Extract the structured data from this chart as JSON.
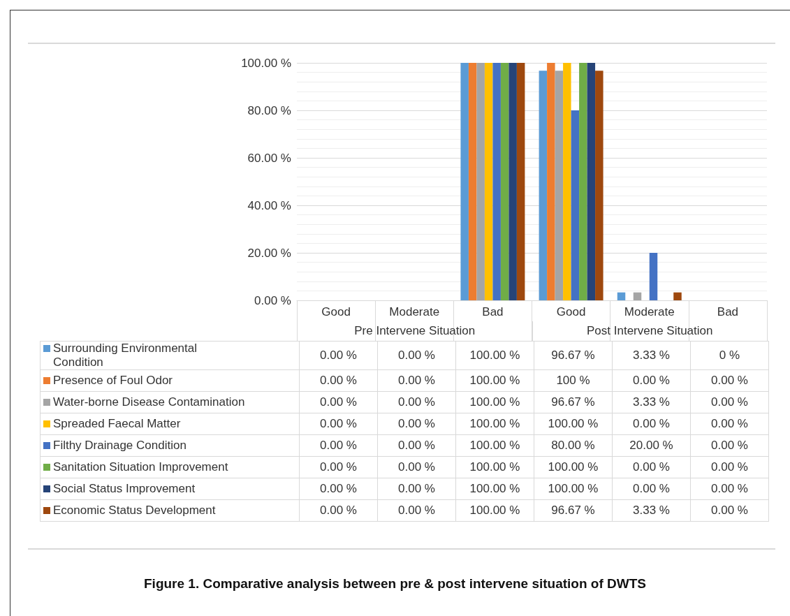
{
  "chart_data": {
    "type": "bar",
    "title": "Figure 1. Comparative analysis between pre & post intervene situation of DWTS",
    "categories": [
      "Good",
      "Moderate",
      "Bad",
      "Good",
      "Moderate",
      "Bad"
    ],
    "annotations": [
      "Pre Intervene Situation",
      "Post Intervene Situation"
    ],
    "ylim": [
      0,
      100
    ],
    "yticks": [
      {
        "value": 0,
        "label": "0.00 %"
      },
      {
        "value": 20,
        "label": "20.00 %"
      },
      {
        "value": 40,
        "label": "40.00 %"
      },
      {
        "value": 60,
        "label": "60.00 %"
      },
      {
        "value": 80,
        "label": "80.00 %"
      },
      {
        "value": 100,
        "label": "100.00 %"
      }
    ],
    "grid": "y",
    "legend": "bottom left",
    "series": [
      {
        "name": "Surrounding Environmental Condition",
        "color": "#5b9bd5",
        "values": [
          0,
          0,
          100,
          96.67,
          3.33,
          0
        ],
        "value_labels": [
          "0.00 %",
          "0.00 %",
          "100.00 %",
          "96.67 %",
          "3.33 %",
          "0 %"
        ]
      },
      {
        "name": "Presence of Foul Odor",
        "color": "#ed7d31",
        "values": [
          0,
          0,
          100,
          100,
          0,
          0
        ],
        "value_labels": [
          "0.00 %",
          "0.00 %",
          "100.00 %",
          "100 %",
          "0.00 %",
          "0.00 %"
        ]
      },
      {
        "name": "Water-borne Disease Contamination",
        "color": "#a5a5a5",
        "values": [
          0,
          0,
          100,
          96.67,
          3.33,
          0
        ],
        "value_labels": [
          "0.00 %",
          "0.00 %",
          "100.00 %",
          "96.67 %",
          "3.33 %",
          "0.00 %"
        ]
      },
      {
        "name": "Spreaded Faecal Matter",
        "color": "#ffc000",
        "values": [
          0,
          0,
          100,
          100,
          0,
          0
        ],
        "value_labels": [
          "0.00 %",
          "0.00 %",
          "100.00 %",
          "100.00 %",
          "0.00 %",
          "0.00 %"
        ]
      },
      {
        "name": "Filthy Drainage Condition",
        "color": "#4472c4",
        "values": [
          0,
          0,
          100,
          80,
          20,
          0
        ],
        "value_labels": [
          "0.00 %",
          "0.00 %",
          "100.00 %",
          "80.00 %",
          "20.00 %",
          "0.00 %"
        ]
      },
      {
        "name": "Sanitation Situation Improvement",
        "color": "#70ad47",
        "values": [
          0,
          0,
          100,
          100,
          0,
          0
        ],
        "value_labels": [
          "0.00 %",
          "0.00 %",
          "100.00 %",
          "100.00 %",
          "0.00 %",
          "0.00 %"
        ]
      },
      {
        "name": "Social Status Improvement",
        "color": "#264478",
        "values": [
          0,
          0,
          100,
          100,
          0,
          0
        ],
        "value_labels": [
          "0.00 %",
          "0.00 %",
          "100.00 %",
          "100.00 %",
          "0.00 %",
          "0.00 %"
        ]
      },
      {
        "name": "Economic Status Development",
        "color": "#9e480e",
        "values": [
          0,
          0,
          100,
          96.67,
          3.33,
          0
        ],
        "value_labels": [
          "0.00 %",
          "0.00 %",
          "100.00 %",
          "96.67 %",
          "3.33 %",
          "0.00 %"
        ]
      }
    ]
  }
}
